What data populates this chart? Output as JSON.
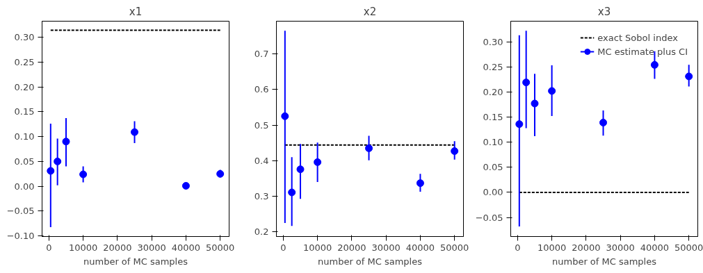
{
  "chart_data": [
    {
      "type": "scatter",
      "title": "x1",
      "xlabel": "number of MC samples",
      "x": [
        500,
        2500,
        5000,
        10000,
        25000,
        40000,
        50000
      ],
      "xlim": [
        -2000,
        52600
      ],
      "xticks": [
        0,
        10000,
        20000,
        30000,
        40000,
        50000
      ],
      "ylim": [
        -0.101,
        0.332
      ],
      "yticks": [
        {
          "value": -0.1,
          "label": "−0.10"
        },
        {
          "value": -0.05,
          "label": "−0.05"
        },
        {
          "value": 0,
          "label": "0.00"
        },
        {
          "value": 0.05,
          "label": "0.05"
        },
        {
          "value": 0.1,
          "label": "0.10"
        },
        {
          "value": 0.15,
          "label": "0.15"
        },
        {
          "value": 0.2,
          "label": "0.20"
        },
        {
          "value": 0.25,
          "label": "0.25"
        },
        {
          "value": 0.3,
          "label": "0.30"
        }
      ],
      "grid": false,
      "legend": false,
      "series": [
        {
          "type": "line",
          "line_style": "dashed",
          "color": "#000000",
          "values": [
            0.314,
            0.314,
            0.314,
            0.314,
            0.314,
            0.314,
            0.314
          ]
        },
        {
          "marker": "circle",
          "color": "#0000ff",
          "values": [
            0.031,
            0.05,
            0.09,
            0.024,
            0.109,
            0.001,
            0.025
          ],
          "errors": [
            [
              -0.082,
              0.126
            ],
            [
              0.002,
              0.096
            ],
            [
              0.04,
              0.137
            ],
            [
              0.008,
              0.04
            ],
            [
              0.087,
              0.131
            ],
            null,
            [
              0.018,
              0.033
            ]
          ]
        }
      ]
    },
    {
      "type": "scatter",
      "title": "x2",
      "xlabel": "number of MC samples",
      "x": [
        500,
        2500,
        5000,
        10000,
        25000,
        40000,
        50000
      ],
      "xlim": [
        -2000,
        52600
      ],
      "xticks": [
        0,
        10000,
        20000,
        30000,
        40000,
        50000
      ],
      "ylim": [
        0.187,
        0.792
      ],
      "yticks": [
        {
          "value": 0.2,
          "label": "0.2"
        },
        {
          "value": 0.3,
          "label": "0.3"
        },
        {
          "value": 0.4,
          "label": "0.4"
        },
        {
          "value": 0.5,
          "label": "0.5"
        },
        {
          "value": 0.6,
          "label": "0.6"
        },
        {
          "value": 0.7,
          "label": "0.7"
        }
      ],
      "grid": false,
      "legend": false,
      "series": [
        {
          "type": "line",
          "line_style": "dashed",
          "color": "#000000",
          "values": [
            0.444,
            0.444,
            0.444,
            0.444,
            0.444,
            0.444,
            0.444
          ]
        },
        {
          "marker": "circle",
          "color": "#0000ff",
          "values": [
            0.525,
            0.311,
            0.376,
            0.396,
            0.435,
            0.337,
            0.427
          ],
          "errors": [
            [
              0.225,
              0.765
            ],
            [
              0.217,
              0.41
            ],
            [
              0.293,
              0.447
            ],
            [
              0.34,
              0.451
            ],
            [
              0.401,
              0.47
            ],
            [
              0.313,
              0.363
            ],
            [
              0.403,
              0.455
            ]
          ]
        }
      ]
    },
    {
      "type": "scatter",
      "title": "x3",
      "xlabel": "number of MC samples",
      "x": [
        500,
        2500,
        5000,
        10000,
        25000,
        40000,
        50000
      ],
      "xlim": [
        -2000,
        52600
      ],
      "xticks": [
        0,
        10000,
        20000,
        30000,
        40000,
        50000
      ],
      "ylim": [
        -0.088,
        0.341
      ],
      "yticks": [
        {
          "value": -0.05,
          "label": "−0.05"
        },
        {
          "value": 0,
          "label": "0.00"
        },
        {
          "value": 0.05,
          "label": "0.05"
        },
        {
          "value": 0.1,
          "label": "0.10"
        },
        {
          "value": 0.15,
          "label": "0.15"
        },
        {
          "value": 0.2,
          "label": "0.20"
        },
        {
          "value": 0.25,
          "label": "0.25"
        },
        {
          "value": 0.3,
          "label": "0.30"
        }
      ],
      "grid": false,
      "legend": "top right",
      "series": [
        {
          "type": "line",
          "line_style": "dashed",
          "name": "exact Sobol index",
          "color": "#000000",
          "values": [
            0.0,
            0.0,
            0.0,
            0.0,
            0.0,
            0.0,
            0.0
          ]
        },
        {
          "marker": "circle",
          "name": "MC estimate plus CI",
          "color": "#0000ff",
          "values": [
            0.136,
            0.219,
            0.177,
            0.202,
            0.139,
            0.254,
            0.231
          ],
          "errors": [
            [
              -0.068,
              0.313
            ],
            [
              0.128,
              0.322
            ],
            [
              0.112,
              0.236
            ],
            [
              0.152,
              0.253
            ],
            [
              0.113,
              0.163
            ],
            [
              0.226,
              0.281
            ],
            [
              0.211,
              0.254
            ]
          ]
        }
      ]
    }
  ]
}
